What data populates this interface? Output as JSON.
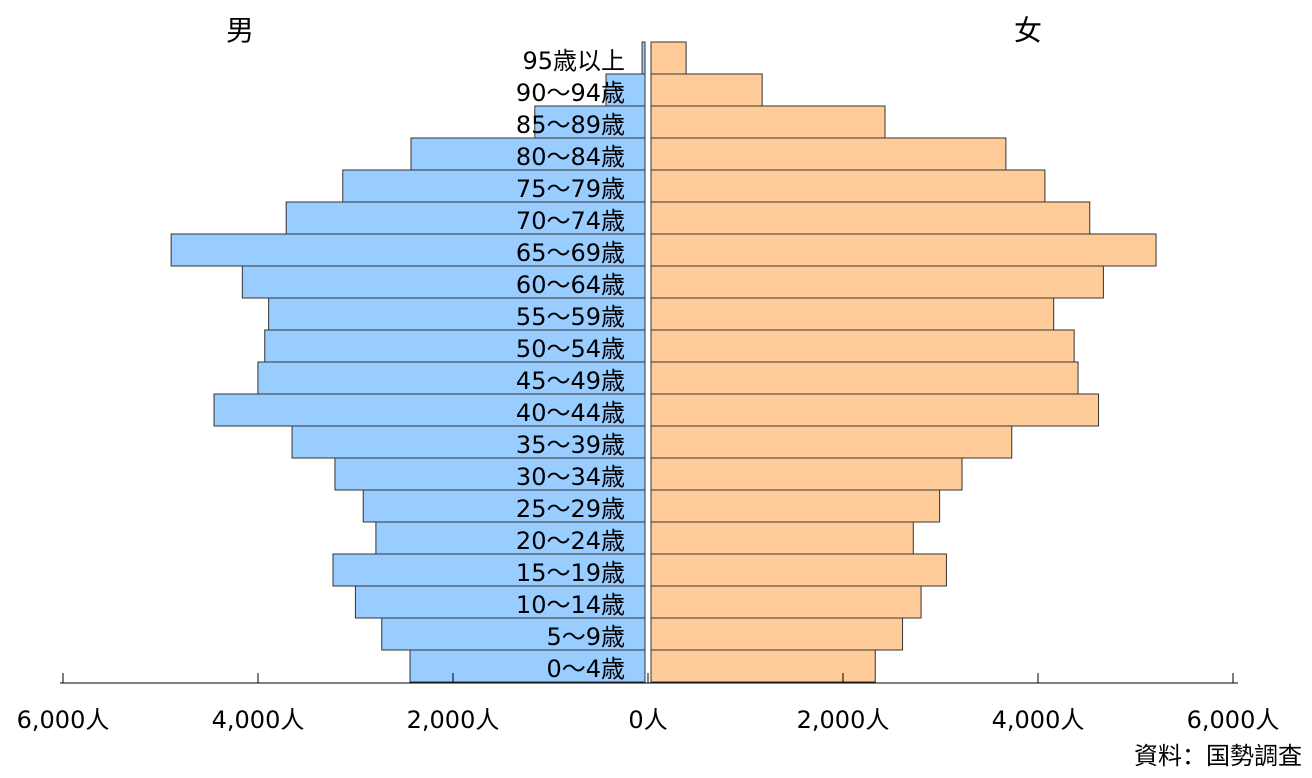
{
  "chart_data": {
    "type": "bar",
    "orientation": "population-pyramid",
    "categories": [
      "95歳以上",
      "90～94歳",
      "85～89歳",
      "80～84歳",
      "75～79歳",
      "70～74歳",
      "65～69歳",
      "60～64歳",
      "55～59歳",
      "50～54歳",
      "45～49歳",
      "40～44歳",
      "35～39歳",
      "30～34歳",
      "25～29歳",
      "20～24歳",
      "15～19歳",
      "10～14歳",
      "5～9歳",
      "0～4歳"
    ],
    "series": [
      {
        "name": "男",
        "values": [
          30,
          400,
          1130,
          2400,
          3100,
          3680,
          4860,
          4130,
          3860,
          3900,
          3970,
          4420,
          3620,
          3180,
          2890,
          2760,
          3200,
          2970,
          2700,
          2410
        ]
      },
      {
        "name": "女",
        "values": [
          360,
          1140,
          2400,
          3640,
          4040,
          4500,
          5180,
          4640,
          4130,
          4340,
          4380,
          4590,
          3700,
          3190,
          2960,
          2690,
          3030,
          2770,
          2580,
          2300
        ]
      }
    ],
    "x_ticks": [
      "6,000人",
      "4,000人",
      "2,000人",
      "0人",
      "2,000人",
      "4,000人",
      "6,000人"
    ],
    "xlim": [
      -6000,
      6000
    ],
    "colors": {
      "male": "#99ccff",
      "female": "#ffcc99"
    }
  },
  "labels": {
    "male": "男",
    "female": "女",
    "source": "資料：国勢調査"
  }
}
